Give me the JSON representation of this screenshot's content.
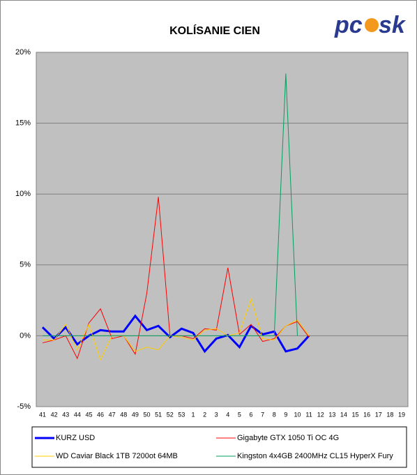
{
  "logo": [
    "pc",
    "sk"
  ],
  "chart_data": {
    "type": "line",
    "title": "KOLÍSANIE CIEN",
    "categories": [
      "41",
      "42",
      "43",
      "44",
      "45",
      "46",
      "47",
      "48",
      "49",
      "50",
      "51",
      "52",
      "53",
      "1",
      "2",
      "3",
      "4",
      "5",
      "6",
      "7",
      "8",
      "9",
      "10",
      "11",
      "12",
      "13",
      "14",
      "15",
      "16",
      "17",
      "18",
      "19"
    ],
    "series": [
      {
        "name": "KURZ USD",
        "color": "#0000ff",
        "width": 3,
        "values": [
          0.6,
          -0.2,
          0.6,
          -0.6,
          0.0,
          0.4,
          0.3,
          0.3,
          1.4,
          0.4,
          0.7,
          -0.1,
          0.5,
          0.2,
          -1.1,
          -0.2,
          0.05,
          -0.8,
          0.7,
          0.1,
          0.3,
          -1.1,
          -0.9,
          0.0,
          null,
          null,
          null,
          null,
          null,
          null,
          null,
          null
        ]
      },
      {
        "name": "Gigabyte GTX 1050 Ti OC 4G",
        "color": "#ff0000",
        "width": 1,
        "values": [
          -0.5,
          -0.3,
          0.0,
          -1.6,
          0.9,
          1.9,
          -0.2,
          0.0,
          -1.3,
          3.0,
          9.8,
          0.0,
          0.0,
          -0.2,
          0.5,
          0.4,
          4.8,
          0.1,
          0.8,
          -0.4,
          -0.2,
          0.7,
          1.0,
          -0.1,
          null,
          null,
          null,
          null,
          null,
          null,
          null,
          null
        ]
      },
      {
        "name": "WD Caviar Black 1TB 7200ot 64MB",
        "color": "#ffcc00",
        "width": 1,
        "values": [
          -0.3,
          -0.3,
          0.8,
          -1.0,
          0.8,
          -1.7,
          0.0,
          0.0,
          -1.1,
          -0.8,
          -1.0,
          0.0,
          -0.1,
          -0.3,
          0.4,
          0.5,
          0.0,
          0.2,
          2.6,
          -0.2,
          -0.3,
          0.7,
          1.1,
          0.0,
          null,
          null,
          null,
          null,
          null,
          null,
          null,
          null
        ]
      },
      {
        "name": "Kingston 4x4GB 2400MHz CL15 HyperX Fury",
        "color": "#00a060",
        "width": 1,
        "values": [
          0,
          0,
          0,
          0,
          0,
          0,
          0,
          0,
          0,
          0,
          0,
          0,
          0,
          0,
          0,
          0,
          0,
          0,
          0,
          0,
          0,
          18.5,
          0.0,
          null,
          null,
          null,
          null,
          null,
          null,
          null,
          null,
          null
        ]
      }
    ],
    "ylim": [
      -5,
      20
    ],
    "yticks": [
      {
        "value": -5,
        "label": "-5%"
      },
      {
        "value": 0,
        "label": "0%"
      },
      {
        "value": 5,
        "label": "5%"
      },
      {
        "value": 10,
        "label": "10%"
      },
      {
        "value": 15,
        "label": "15%"
      },
      {
        "value": 20,
        "label": "20%"
      }
    ],
    "grid": true,
    "legend": "bottom"
  }
}
